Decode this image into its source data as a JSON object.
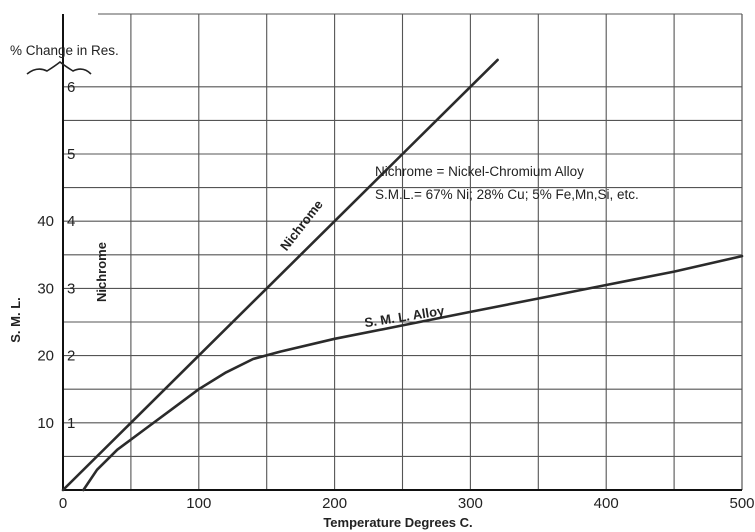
{
  "chart_data": {
    "type": "line",
    "xlabel": "Temperature Degrees C.",
    "x_ticks": [
      "0",
      "100",
      "200",
      "300",
      "400",
      "500"
    ],
    "xlim": [
      0,
      500
    ],
    "left_axis_title": "% Change in Res.",
    "left_axis_ticks": [
      "1",
      "2",
      "3",
      "4",
      "5",
      "6"
    ],
    "nichrome_axis_label": "Nichrome",
    "sml_axis_label": "S. M. L.",
    "sml_axis_ticks": [
      "10",
      "20",
      "30",
      "40"
    ],
    "grid": true,
    "annotation": {
      "line1": "Nichrome = Nickel-Chromium Alloy",
      "line2": "S.M.L.= 67% Ni;  28% Cu;  5% Fe,Mn,Si, etc."
    },
    "series": [
      {
        "name": "Nichrome",
        "x": [
          0,
          50,
          100,
          150,
          200,
          250,
          300,
          320
        ],
        "y": [
          0,
          1.0,
          2.0,
          3.0,
          4.0,
          5.0,
          6.0,
          6.4
        ]
      },
      {
        "name": "S. M. L. Alloy",
        "x": [
          15,
          25,
          40,
          60,
          80,
          100,
          120,
          140,
          160,
          200,
          250,
          300,
          350,
          400,
          450,
          500
        ],
        "y": [
          0,
          3,
          6,
          9,
          12,
          15,
          17.5,
          19.5,
          20.6,
          22.5,
          24.5,
          26.5,
          28.5,
          30.5,
          32.5,
          34.8
        ]
      }
    ],
    "line_color": "#2b2b2b",
    "grid_color": "#555555"
  }
}
